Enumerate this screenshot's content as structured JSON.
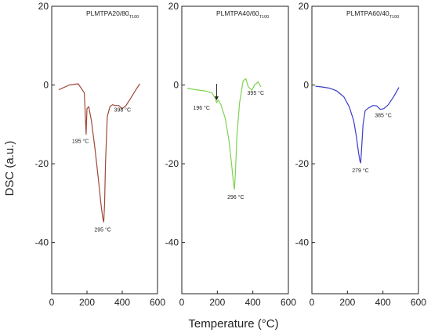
{
  "chart_data": {
    "type": "line",
    "ylabel": "DSC (a.u.)",
    "xlabel": "Temperature (°C)",
    "panels": [
      {
        "title": "PLMTPA20/80",
        "title_sub": "T100",
        "color": "#a0483a",
        "xlim": [
          0,
          600
        ],
        "ylim": [
          -53,
          20
        ],
        "x_ticks": [
          0,
          200,
          400,
          600
        ],
        "y_ticks": [
          20,
          0,
          -20,
          -40
        ],
        "x": [
          40,
          100,
          150,
          185,
          195,
          200,
          210,
          225,
          245,
          265,
          280,
          290,
          295,
          300,
          305,
          315,
          330,
          345,
          360,
          380,
          398,
          420,
          450,
          480,
          500
        ],
        "y": [
          -1.2,
          0,
          0.3,
          -2,
          -12.5,
          -6,
          -5.5,
          -9,
          -16,
          -24,
          -30.5,
          -34,
          -34.8,
          -30,
          -20,
          -8,
          -5.5,
          -5,
          -5.2,
          -5.2,
          -6,
          -5.3,
          -3.2,
          -1,
          0.3
        ],
        "annotations": [
          {
            "text": "195 °C",
            "x": 195,
            "y": -12.5
          },
          {
            "text": "295 °C",
            "x": 295,
            "y": -34.8
          },
          {
            "text": "398 °C",
            "x": 398,
            "y": -6
          }
        ]
      },
      {
        "title": "PLMTPA40/60",
        "title_sub": "T100",
        "color": "#7ed352",
        "xlim": [
          0,
          600
        ],
        "ylim": [
          -53,
          20
        ],
        "x_ticks": [
          0,
          200,
          400,
          600
        ],
        "y_ticks": [
          20,
          0,
          -20,
          -40
        ],
        "x": [
          30,
          80,
          130,
          170,
          190,
          196,
          205,
          220,
          245,
          265,
          280,
          290,
          296,
          302,
          310,
          325,
          345,
          360,
          375,
          395,
          410,
          430,
          445
        ],
        "y": [
          -0.8,
          -1.2,
          -1.5,
          -2,
          -3.5,
          -4.5,
          -3.8,
          -5,
          -8.5,
          -14,
          -20,
          -24.5,
          -26.5,
          -22,
          -13,
          -4.5,
          1,
          1.6,
          -0.5,
          -1.3,
          0,
          0.8,
          -0.5
        ],
        "arrow": {
          "x": 196,
          "y_from": 0.3,
          "y_to": -3.9
        },
        "annotations": [
          {
            "text": "196 °C",
            "x": 196,
            "y": -4.5
          },
          {
            "text": "296 °C",
            "x": 296,
            "y": -26.5
          },
          {
            "text": "395 °C",
            "x": 395,
            "y": -1.3
          }
        ]
      },
      {
        "title": "PLMTPA60/40",
        "title_sub": "T100",
        "color": "#3c3cc8",
        "xlim": [
          0,
          600
        ],
        "ylim": [
          -53,
          20
        ],
        "x_ticks": [
          0,
          200,
          400,
          600
        ],
        "y_ticks": [
          20,
          0,
          -20,
          -40
        ],
        "x": [
          20,
          60,
          100,
          140,
          180,
          210,
          235,
          250,
          262,
          270,
          275,
          280,
          288,
          300,
          320,
          345,
          365,
          385,
          405,
          430,
          460,
          490
        ],
        "y": [
          -0.3,
          -0.5,
          -0.8,
          -1.5,
          -3,
          -5.5,
          -9,
          -13,
          -17,
          -19.2,
          -19.8,
          -16,
          -10,
          -6.5,
          -5.8,
          -5.2,
          -5.3,
          -6.2,
          -6,
          -5,
          -3,
          -0.6
        ],
        "annotations": [
          {
            "text": "279 °C",
            "x": 279,
            "y": -19.8
          },
          {
            "text": "385 °C",
            "x": 385,
            "y": -6.2
          }
        ]
      }
    ]
  }
}
